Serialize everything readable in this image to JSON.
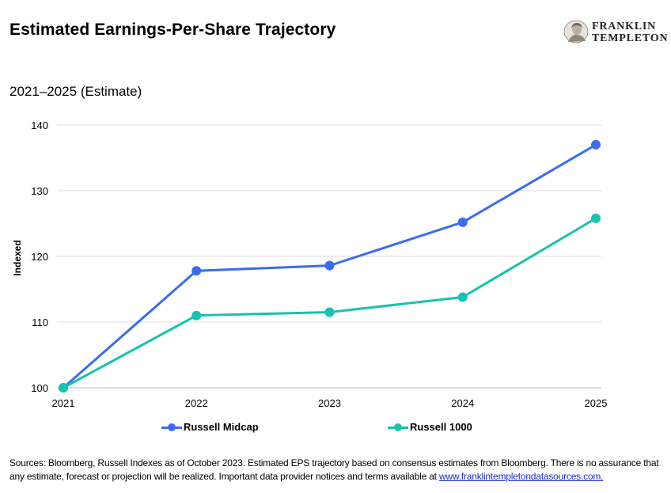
{
  "header": {
    "title": "Estimated Earnings-Per-Share Trajectory",
    "subtitle": "2021–2025 (Estimate)"
  },
  "logo": {
    "line1": "FRANKLIN",
    "line2": "TEMPLETON"
  },
  "chart_data": {
    "type": "line",
    "x": [
      "2021",
      "2022",
      "2023",
      "2024",
      "2025"
    ],
    "ylabel": "Indexed",
    "xlabel": "",
    "ylim": [
      100,
      140
    ],
    "yticks": [
      100,
      110,
      120,
      130,
      140
    ],
    "grid": "horizontal",
    "legend_position": "bottom",
    "series": [
      {
        "name": "Russell Midcap",
        "color": "#3b6cf0",
        "values": [
          100,
          117.8,
          118.6,
          125.2,
          137.0
        ]
      },
      {
        "name": "Russell 1000",
        "color": "#16c2b0",
        "values": [
          100,
          111.0,
          111.5,
          113.8,
          125.8
        ]
      }
    ]
  },
  "footnote": {
    "text": "Sources: Bloomberg, Russell Indexes as of October 2023. Estimated EPS trajectory based on consensus estimates from Bloomberg. There is no assurance that any estimate, forecast or projection will be realized.  Important data provider notices and terms available at ",
    "link": "www.franklintempletondatasources.com."
  }
}
